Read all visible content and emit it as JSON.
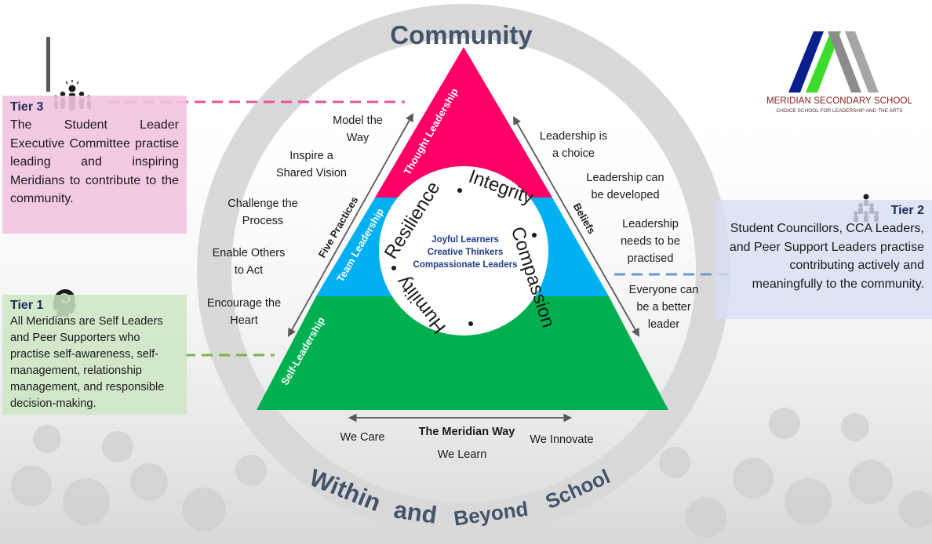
{
  "ring": {
    "top": "Community",
    "bottom_parts": [
      "Within",
      "and",
      "Beyond",
      "School"
    ]
  },
  "triangle": {
    "tiers": [
      {
        "label": "Thought Leadership",
        "color": "#ff0066"
      },
      {
        "label": "Team Leadership",
        "color": "#00b0f0"
      },
      {
        "label": "Self-Leadership",
        "color": "#00b050"
      }
    ]
  },
  "core": {
    "values_ring": [
      "Resilience",
      "Integrity",
      "Compassion",
      "Humility"
    ],
    "center_lines": [
      "Joyful Learners",
      "Creative Thinkers",
      "Compassionate Leaders"
    ]
  },
  "five_practices": {
    "label": "Five Practices",
    "items": [
      [
        "Model the",
        "Way"
      ],
      [
        "Inspire a",
        "Shared Vision"
      ],
      [
        "Challenge the",
        "Process"
      ],
      [
        "Enable Others",
        "to Act"
      ],
      [
        "Encourage the",
        "Heart"
      ]
    ]
  },
  "beliefs": {
    "label": "Beliefs",
    "items": [
      [
        "Leadership is",
        "a choice"
      ],
      [
        "Leadership can",
        "be developed"
      ],
      [
        "Leadership",
        "needs to be",
        "practised"
      ],
      [
        "Everyone can",
        "be a better",
        "leader"
      ]
    ]
  },
  "meridian_way": {
    "title": "The Meridian Way",
    "items": [
      "We Care",
      "We Learn",
      "We Innovate"
    ]
  },
  "tiers": {
    "tier3": {
      "title": "Tier 3",
      "description": "The Student Leader Executive Committee practise leading and inspiring Meridians to contribute to the community."
    },
    "tier2": {
      "title": "Tier 2",
      "description": "Student Councillors, CCA Leaders, and Peer Support Leaders practise contributing actively and meaningfully to the community."
    },
    "tier1": {
      "title": "Tier 1",
      "description": "All Meridians are Self Leaders and Peer Supporters who practise self-awareness, self-management, relationship management, and responsible decision-making."
    }
  },
  "logo": {
    "name": "MERIDIAN SECONDARY SCHOOL",
    "tagline": "CHOICE SCHOOL FOR LEADERSHIP AND THE ARTS"
  },
  "colors": {
    "ring": "#d9d9d9",
    "ring_text": "#44546a",
    "tier3_dash": "#e6559f",
    "tier2_dash": "#6a98cf",
    "tier1_dash": "#7ab648"
  },
  "icons": [
    "group-leader-icon",
    "head-silhouette-icon",
    "team-pyramid-icon",
    "school-logo-icon"
  ]
}
